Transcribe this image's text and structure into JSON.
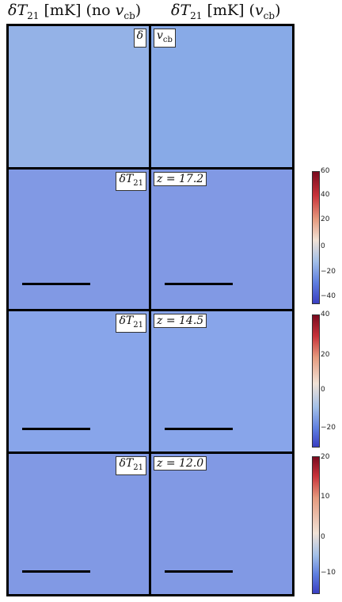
{
  "columns": {
    "left_title": {
      "base": "δT",
      "sub": "21",
      "unit": " [mK] (no ",
      "var": "v",
      "varsub": "cb",
      "tail": ")"
    },
    "right_title": {
      "base": "δT",
      "sub": "21",
      "unit": " [mK] (",
      "var": "v",
      "varsub": "cb",
      "tail": ")"
    }
  },
  "rows": [
    {
      "left_label": {
        "base": "δ",
        "sub": ""
      },
      "right_label": {
        "base": "v",
        "sub": "cb"
      }
    },
    {
      "left_label": {
        "base": "δT",
        "sub": "21"
      },
      "right_label": {
        "base": "z = 17.2",
        "sub": ""
      }
    },
    {
      "left_label": {
        "base": "δT",
        "sub": "21"
      },
      "right_label": {
        "base": "z = 14.5",
        "sub": ""
      }
    },
    {
      "left_label": {
        "base": "δT",
        "sub": "21"
      },
      "right_label": {
        "base": "z = 12.0",
        "sub": ""
      }
    }
  ],
  "colorbars": [
    {
      "ticks": [
        "60",
        "40",
        "20",
        "0",
        "−20",
        "−40"
      ]
    },
    {
      "ticks": [
        "40",
        "20",
        "0",
        "−20"
      ]
    },
    {
      "ticks": [
        "20",
        "10",
        "0",
        "−10"
      ]
    }
  ],
  "colors": {
    "cold": "#3b4cc0",
    "mid": "#e8ecec",
    "hot": "#b40426",
    "border": "#000000"
  }
}
